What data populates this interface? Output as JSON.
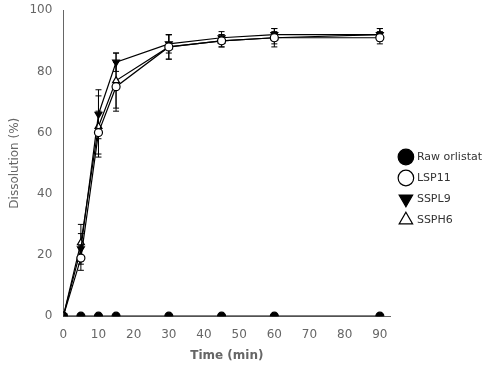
{
  "chart_data": {
    "type": "line",
    "x_label": "Time (min)",
    "y_label": "Dissolution (%)",
    "x": [
      0,
      5,
      10,
      15,
      30,
      45,
      60,
      90
    ],
    "series": [
      {
        "name": "Raw orlistat",
        "color": "#000000",
        "marker": "circle",
        "values": [
          0,
          0,
          0,
          0,
          0,
          0,
          0,
          0
        ],
        "errors": [
          0,
          0,
          0,
          0,
          0,
          0,
          0,
          0
        ]
      },
      {
        "name": "LSP11",
        "color": "#000000",
        "marker": "circle_open",
        "values": [
          0,
          19,
          60,
          75,
          88,
          90,
          91,
          91
        ],
        "errors": [
          0,
          4,
          7,
          8,
          4,
          2,
          2,
          2
        ]
      },
      {
        "name": "SSPL9",
        "color": "#000000",
        "marker": "triangle_down",
        "values": [
          0,
          22,
          66,
          83,
          89,
          91,
          92,
          92
        ],
        "errors": [
          0,
          5,
          8,
          3,
          3,
          2,
          2,
          2
        ]
      },
      {
        "name": "SSPH6",
        "color": "#000000",
        "marker": "triangle_open",
        "values": [
          0,
          24,
          62,
          77,
          88,
          90,
          91,
          92
        ],
        "errors": [
          0,
          6,
          10,
          9,
          4,
          2,
          3,
          2
        ]
      }
    ],
    "xlim": [
      0,
      93
    ],
    "ylim": [
      0,
      100
    ],
    "xticks": [
      0,
      10,
      20,
      30,
      40,
      50,
      60,
      70,
      80,
      90
    ],
    "yticks": [
      0,
      20,
      40,
      60,
      80,
      100
    ],
    "grid": false,
    "legend": "right"
  }
}
